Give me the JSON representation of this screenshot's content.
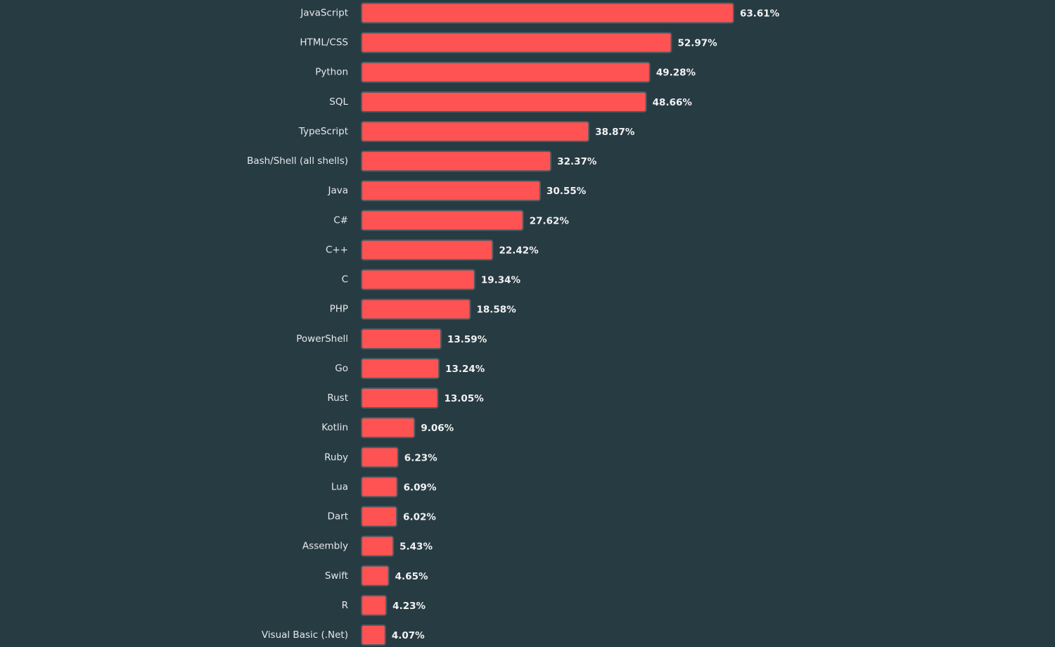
{
  "chart_data": {
    "type": "bar",
    "categories": [
      "JavaScript",
      "HTML/CSS",
      "Python",
      "SQL",
      "TypeScript",
      "Bash/Shell (all shells)",
      "Java",
      "C#",
      "C++",
      "C",
      "PHP",
      "PowerShell",
      "Go",
      "Rust",
      "Kotlin",
      "Ruby",
      "Lua",
      "Dart",
      "Assembly",
      "Swift",
      "R",
      "Visual Basic (.Net)"
    ],
    "values": [
      63.61,
      52.97,
      49.28,
      48.66,
      38.87,
      32.37,
      30.55,
      27.62,
      22.42,
      19.34,
      18.58,
      13.59,
      13.24,
      13.05,
      9.06,
      6.23,
      6.09,
      6.02,
      5.43,
      4.65,
      4.23,
      4.07
    ],
    "value_labels": [
      "63.61%",
      "52.97%",
      "49.28%",
      "48.66%",
      "38.87%",
      "32.37%",
      "30.55%",
      "27.62%",
      "22.42%",
      "19.34%",
      "18.58%",
      "13.59%",
      "13.24%",
      "13.05%",
      "9.06%",
      "6.23%",
      "6.09%",
      "6.02%",
      "5.43%",
      "4.65%",
      "4.23%",
      "4.07%"
    ],
    "color": "#ff5252"
  }
}
